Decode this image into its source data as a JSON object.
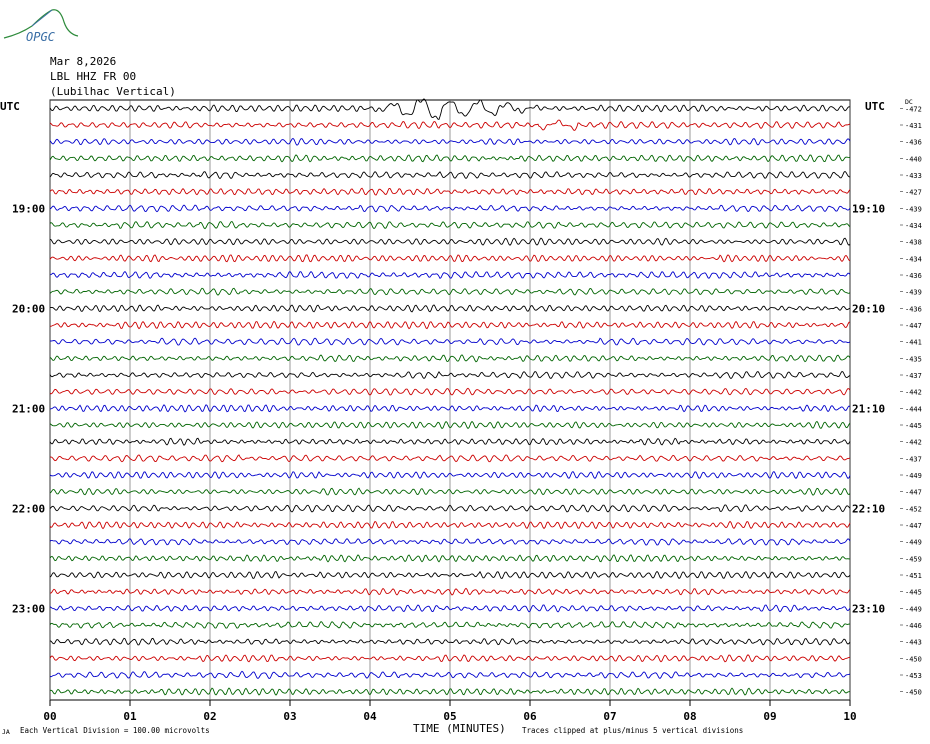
{
  "logo": {
    "text": "OPGC",
    "color": "#3a6ea5",
    "accent": "#2e8b3c"
  },
  "header": {
    "date": "Mar 8,2026",
    "station": "LBL HHZ FR 00",
    "location": "(Lubilhac Vertical)"
  },
  "left_axis_title": "UTC",
  "right_axis_title": "UTC",
  "dc_label": "DC",
  "footer": {
    "division_note": "Each Vertical Division =  100.00 microvolts",
    "xlabel": "TIME (MINUTES)",
    "clip_note": "Traces clipped at plus/minus 5 vertical divisions",
    "corner_mark": "JA"
  },
  "chart_data": {
    "type": "line",
    "title": "",
    "xlabel": "TIME (MINUTES)",
    "ylabel": "UTC",
    "xlim": [
      0,
      10
    ],
    "x_ticks": [
      "00",
      "01",
      "02",
      "03",
      "04",
      "05",
      "06",
      "07",
      "08",
      "09",
      "10"
    ],
    "grid": true,
    "trace_colors": [
      "#000000",
      "#cc0000",
      "#0000cc",
      "#006400"
    ],
    "left_hour_labels": [
      {
        "row": 6,
        "label": "19:00"
      },
      {
        "row": 12,
        "label": "20:00"
      },
      {
        "row": 18,
        "label": "21:00"
      },
      {
        "row": 24,
        "label": "22:00"
      },
      {
        "row": 30,
        "label": "23:00"
      }
    ],
    "right_hour_labels": [
      {
        "row": 6,
        "label": "19:10"
      },
      {
        "row": 12,
        "label": "20:10"
      },
      {
        "row": 18,
        "label": "21:10"
      },
      {
        "row": 24,
        "label": "22:10"
      },
      {
        "row": 30,
        "label": "23:10"
      }
    ],
    "dc_offsets": [
      "-472",
      "-431",
      "-436",
      "-440",
      "-433",
      "-427",
      "-439",
      "-434",
      "-438",
      "-434",
      "-436",
      "-439",
      "-436",
      "-447",
      "-441",
      "-435",
      "-437",
      "-442",
      "-444",
      "-445",
      "-442",
      "-437",
      "-449",
      "-447",
      "-452",
      "-447",
      "-449",
      "-459",
      "-451",
      "-445",
      "-449",
      "-446",
      "-443",
      "-450",
      "-453",
      "-450"
    ],
    "event": {
      "start_min": 4.0,
      "end_min": 6.2,
      "trace_row": 0,
      "note_row1_start_min": 6.1
    }
  }
}
